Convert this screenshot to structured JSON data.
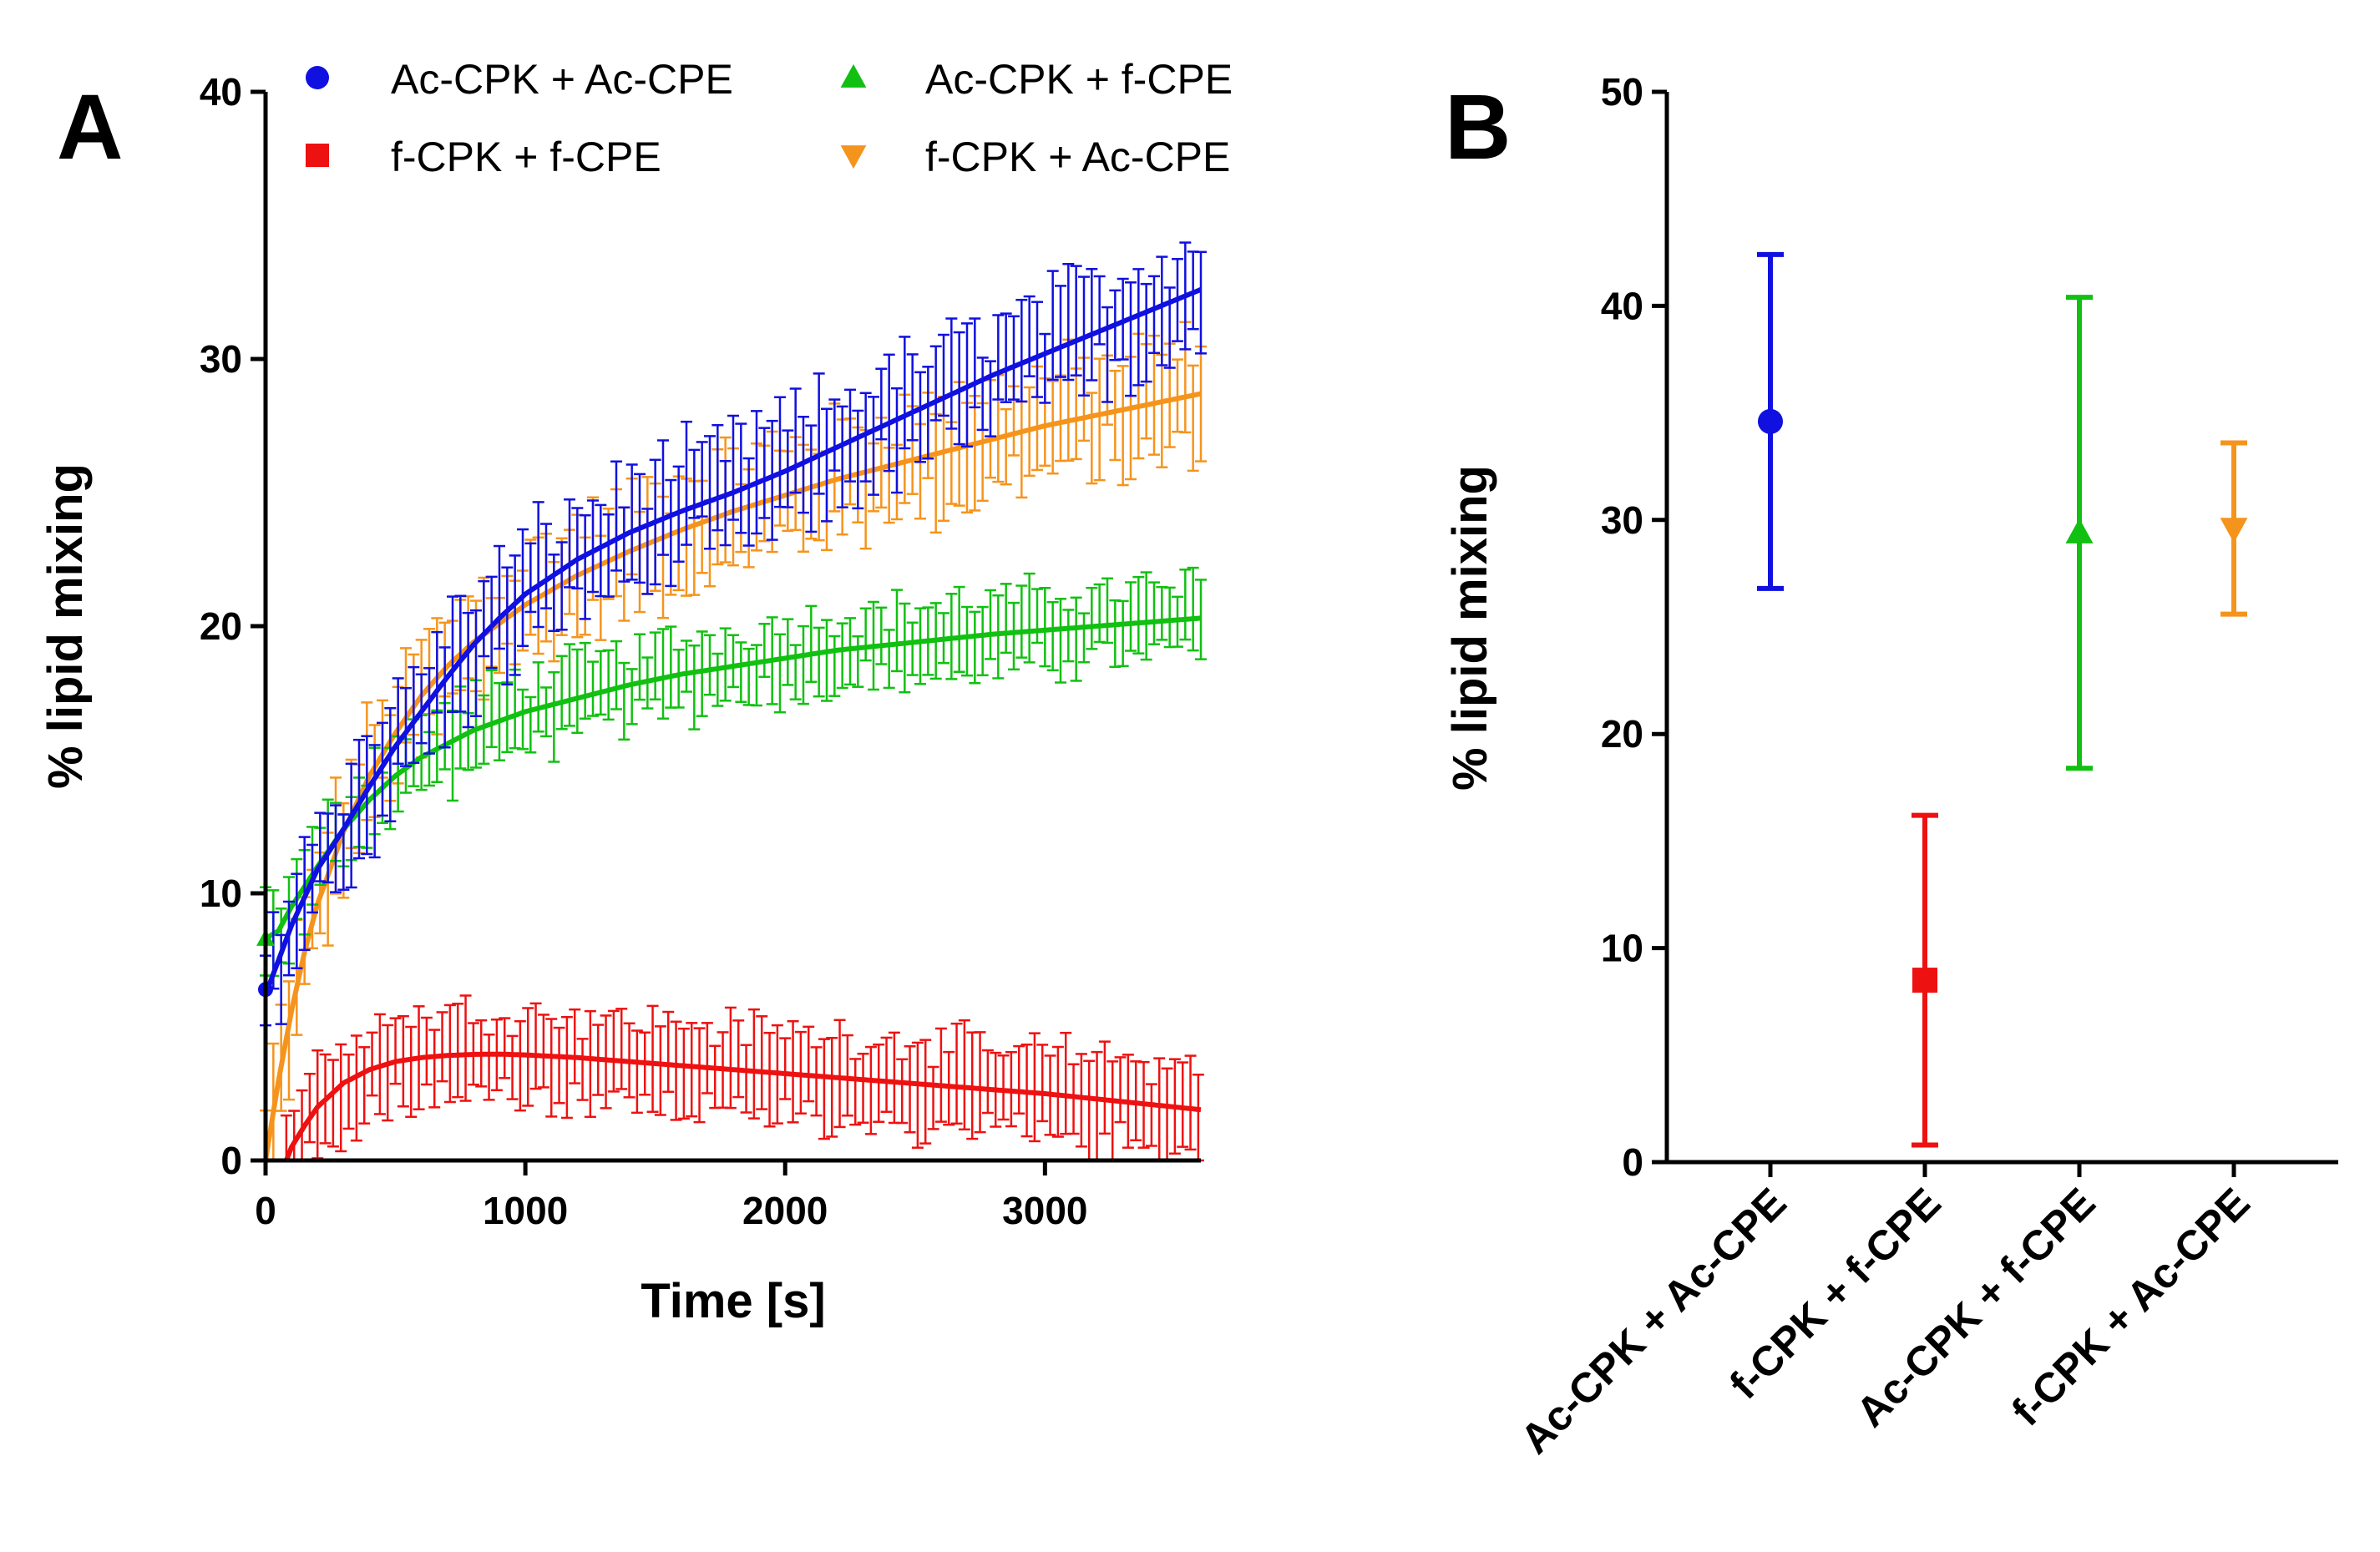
{
  "series_colors": {
    "Ac-CPK + Ac-CPE": "#1010e0",
    "f-CPK + f-CPE": "#ee1111",
    "Ac-CPK + f-CPE": "#11c011",
    "f-CPK + Ac-CPE": "#f5941d"
  },
  "chart_data": [
    {
      "panel": "A",
      "type": "line",
      "xlabel": "Time [s]",
      "ylabel": "% lipid mixing",
      "xlim": [
        0,
        3600
      ],
      "ylim": [
        0,
        40
      ],
      "xticks": [
        0,
        1000,
        2000,
        3000
      ],
      "yticks": [
        0,
        10,
        20,
        30,
        40
      ],
      "legend": [
        {
          "name": "Ac-CPK + Ac-CPE",
          "marker": "circle"
        },
        {
          "name": "Ac-CPK + f-CPE",
          "marker": "triangle-up"
        },
        {
          "name": "f-CPK + f-CPE",
          "marker": "square"
        },
        {
          "name": "f-CPK + Ac-CPE",
          "marker": "triangle-down"
        }
      ],
      "series": [
        {
          "name": "Ac-CPK + Ac-CPE",
          "x": [
            0,
            100,
            200,
            300,
            400,
            500,
            600,
            700,
            800,
            900,
            1000,
            1200,
            1400,
            1600,
            1800,
            2000,
            2200,
            2400,
            2600,
            2800,
            3000,
            3200,
            3400,
            3600
          ],
          "fit": [
            6.2,
            8.8,
            10.9,
            12.4,
            14.0,
            15.5,
            16.8,
            18.1,
            19.3,
            20.3,
            21.2,
            22.5,
            23.5,
            24.3,
            25.0,
            25.8,
            26.7,
            27.6,
            28.5,
            29.4,
            30.2,
            31.0,
            31.8,
            32.6
          ],
          "err_typical": 1.8,
          "noise": 1.0
        },
        {
          "name": "f-CPK + f-CPE",
          "x": [
            80,
            100,
            150,
            200,
            300,
            400,
            500,
            600,
            700,
            800,
            900,
            1000,
            1200,
            1400,
            1600,
            1800,
            2000,
            2200,
            2400,
            2600,
            2800,
            3000,
            3200,
            3400,
            3600
          ],
          "fit": [
            0.0,
            0.5,
            1.3,
            2.0,
            2.9,
            3.4,
            3.7,
            3.85,
            3.93,
            3.97,
            3.98,
            3.95,
            3.85,
            3.7,
            3.55,
            3.4,
            3.25,
            3.1,
            2.95,
            2.8,
            2.65,
            2.5,
            2.3,
            2.1,
            1.9
          ],
          "err_typical": 1.6,
          "noise": 0.5
        },
        {
          "name": "Ac-CPK + f-CPE",
          "x": [
            0,
            50,
            100,
            200,
            300,
            400,
            500,
            600,
            800,
            1000,
            1200,
            1400,
            1600,
            1800,
            2000,
            2200,
            2400,
            2600,
            2800,
            3000,
            3200,
            3400,
            3600
          ],
          "fit": [
            8.3,
            8.6,
            9.5,
            11.0,
            12.4,
            13.5,
            14.4,
            15.1,
            16.1,
            16.8,
            17.3,
            17.8,
            18.2,
            18.5,
            18.8,
            19.1,
            19.3,
            19.5,
            19.7,
            19.85,
            20.0,
            20.15,
            20.3
          ],
          "err_typical": 1.3,
          "noise": 0.6
        },
        {
          "name": "f-CPK + Ac-CPE",
          "x": [
            0,
            50,
            100,
            150,
            200,
            300,
            400,
            500,
            600,
            700,
            800,
            900,
            1000,
            1200,
            1400,
            1600,
            1800,
            2000,
            2200,
            2400,
            2600,
            2800,
            3000,
            3200,
            3400,
            3600
          ],
          "fit": [
            0.0,
            3.0,
            5.6,
            7.8,
            9.6,
            12.3,
            14.4,
            16.0,
            17.4,
            18.5,
            19.4,
            20.1,
            20.8,
            21.9,
            22.8,
            23.6,
            24.3,
            24.9,
            25.5,
            26.0,
            26.5,
            27.0,
            27.5,
            27.9,
            28.3,
            28.7
          ],
          "err_typical": 1.8,
          "noise": 0.9
        }
      ]
    },
    {
      "panel": "B",
      "type": "scatter",
      "ylabel": "% lipid mixing",
      "ylim": [
        0,
        50
      ],
      "yticks": [
        0,
        10,
        20,
        30,
        40,
        50
      ],
      "categories": [
        "Ac-CPK + Ac-CPE",
        "f-CPK + f-CPE",
        "Ac-CPK + f-CPE",
        "f-CPK + Ac-CPE"
      ],
      "values": [
        34.6,
        8.5,
        29.4,
        29.6
      ],
      "errors": [
        7.8,
        7.7,
        11.0,
        4.0
      ],
      "markers": [
        "circle",
        "square",
        "triangle-up",
        "triangle-down"
      ]
    }
  ]
}
